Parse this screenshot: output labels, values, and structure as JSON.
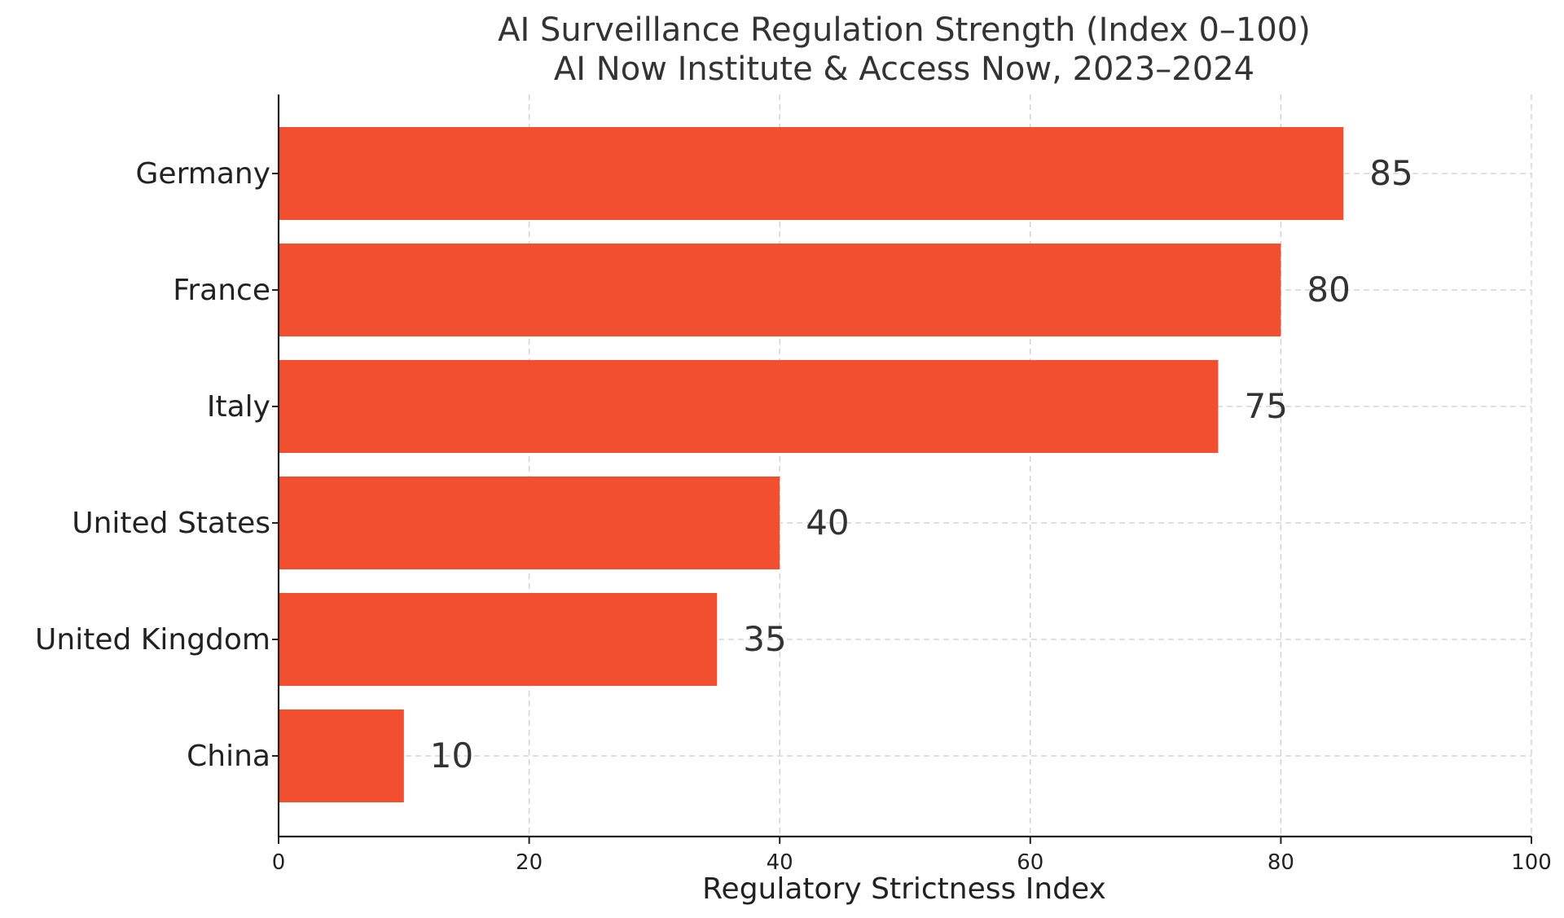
{
  "chart_data": {
    "type": "bar",
    "orientation": "horizontal",
    "title": "AI Surveillance Regulation Strength (Index 0–100)",
    "subtitle": "AI Now Institute & Access Now, 2023–2024",
    "xlabel": "Regulatory Strictness Index",
    "ylabel": "",
    "categories": [
      "Germany",
      "France",
      "Italy",
      "United States",
      "United Kingdom",
      "China"
    ],
    "values": [
      85,
      80,
      75,
      40,
      35,
      10
    ],
    "value_labels": [
      "85",
      "80",
      "75",
      "40",
      "35",
      "10"
    ],
    "xlim": [
      0,
      100
    ],
    "xticks": [
      0,
      20,
      40,
      60,
      80,
      100
    ],
    "xtick_labels": [
      "0",
      "20",
      "40",
      "60",
      "80",
      "100"
    ],
    "grid": true,
    "legend": "none",
    "bar_color": "#f24e30"
  }
}
